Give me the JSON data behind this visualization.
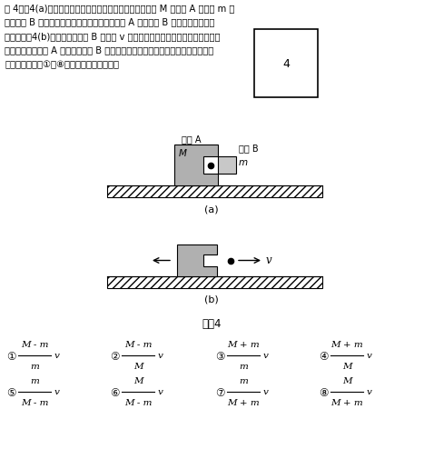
{
  "title_lines": [
    "問 4　図4(a)のように，なめらかで水平な床の上で，質量 M の物体 A と質量 m の",
    "　　物体 B が一体となって静止している。物体 A から物体 B を打ち出したとこ",
    "　　ろ，図4(b)のように，物体 B は速さ v で水平方向に動き出した。動き出した",
    "　　直後の，物体 A に対する物体 B の相対速度の大きさを表す式として正しいも",
    "　　のを，下の①～⑧のうちから一つ選べ。"
  ],
  "answer_box": "4",
  "fig_label_a": "(a)",
  "fig_label_b": "(b)",
  "fig_title": "図　4",
  "formulas": [
    {
      "num": "①",
      "numer": "M - m",
      "denom": "m",
      "suffix": "v"
    },
    {
      "num": "②",
      "numer": "M - m",
      "denom": "M",
      "suffix": "v"
    },
    {
      "num": "③",
      "numer": "M + m",
      "denom": "m",
      "suffix": "v"
    },
    {
      "num": "④",
      "numer": "M + m",
      "denom": "M",
      "suffix": "v"
    },
    {
      "num": "⑤",
      "numer": "m",
      "denom": "M - m",
      "suffix": "v"
    },
    {
      "num": "⑥",
      "numer": "M",
      "denom": "M - m",
      "suffix": "v"
    },
    {
      "num": "⑦",
      "numer": "m",
      "denom": "M + m",
      "suffix": "v"
    },
    {
      "num": "⑧",
      "numer": "M",
      "denom": "M + m",
      "suffix": "v"
    }
  ],
  "background": "#ffffff",
  "block_gray": "#b0b0b0",
  "block_gray2": "#c8c8c8",
  "floor_hatch": "////",
  "label_bodyA_a": "物体 A",
  "label_M_a": "M",
  "label_bodyB_a": "物体 B",
  "label_m_a": "m"
}
